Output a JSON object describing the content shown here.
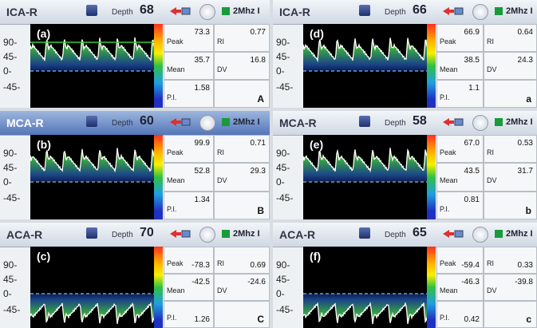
{
  "labels": {
    "depth": "Depth",
    "freq": "2Mhz I",
    "peak": "Peak",
    "mean": "Mean",
    "ri": "RI",
    "dv": "DV",
    "pi": "P.I."
  },
  "y_scale": [
    "90-",
    "45-",
    "0-",
    "-45-"
  ],
  "panels": [
    {
      "tag": "(a)",
      "vessel": "ICA-R",
      "depth": "68",
      "peak": "73.3",
      "ri": "0.77",
      "mean": "35.7",
      "dv": "16.8",
      "pi": "1.58",
      "letter": "A"
    },
    {
      "tag": "(d)",
      "vessel": "ICA-R",
      "depth": "66",
      "peak": "66.9",
      "ri": "0.64",
      "mean": "38.5",
      "dv": "24.3",
      "pi": "1.1",
      "letter": "a"
    },
    {
      "tag": "(b)",
      "vessel": "MCA-R",
      "depth": "60",
      "peak": "99.9",
      "ri": "0.71",
      "mean": "52.8",
      "dv": "29.3",
      "pi": "1.34",
      "letter": "B"
    },
    {
      "tag": "(e)",
      "vessel": "MCA-R",
      "depth": "58",
      "peak": "67.0",
      "ri": "0.53",
      "mean": "43.5",
      "dv": "31.7",
      "pi": "0.81",
      "letter": "b"
    },
    {
      "tag": "(c)",
      "vessel": "ACA-R",
      "depth": "70",
      "peak": "-78.3",
      "ri": "0.69",
      "mean": "-42.5",
      "dv": "-24.6",
      "pi": "1.26",
      "letter": "C"
    },
    {
      "tag": "(f)",
      "vessel": "ACA-R",
      "depth": "65",
      "peak": "-59.4",
      "ri": "0.33",
      "mean": "-46.3",
      "dv": "-39.8",
      "pi": "0.42",
      "letter": "c"
    }
  ]
}
